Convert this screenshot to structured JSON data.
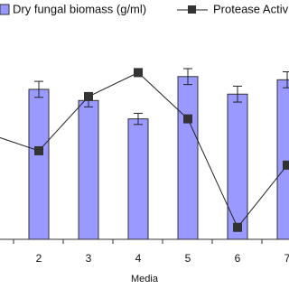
{
  "chart_data": {
    "type": "bar-line",
    "x_label": "Media",
    "categories": [
      null,
      "2",
      "3",
      "4",
      "5",
      "6",
      "7"
    ],
    "ylim": [
      0,
      3
    ],
    "y2lim": [
      0,
      3
    ],
    "series": [
      {
        "name": "Dry fungal biomass (g/ml)",
        "type": "bar",
        "color": "#9999ff",
        "values": [
          null,
          1.88,
          1.74,
          1.51,
          2.04,
          1.82,
          2.0
        ],
        "errors": [
          null,
          0.1,
          0.08,
          0.07,
          0.1,
          0.1,
          0.1
        ]
      },
      {
        "name": "Protease Activity",
        "type": "line",
        "axis": "y2",
        "color": "#222222",
        "values": [
          1.32,
          1.11,
          1.79,
          2.09,
          1.51,
          0.15,
          0.93
        ]
      }
    ]
  }
}
